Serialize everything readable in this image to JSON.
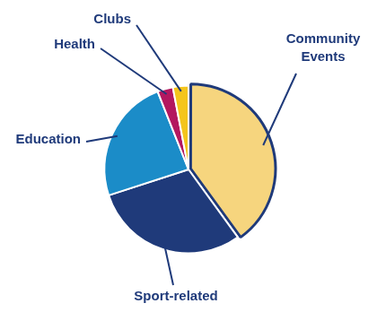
{
  "chart_data": {
    "type": "pie",
    "categories": [
      "Community Events",
      "Sport-related",
      "Education",
      "Health",
      "Clubs"
    ],
    "values": [
      40,
      30,
      24,
      3,
      3
    ],
    "colors": [
      "#f6d57e",
      "#1f3a7a",
      "#1b8cc8",
      "#b3175f",
      "#f4c51c"
    ]
  }
}
